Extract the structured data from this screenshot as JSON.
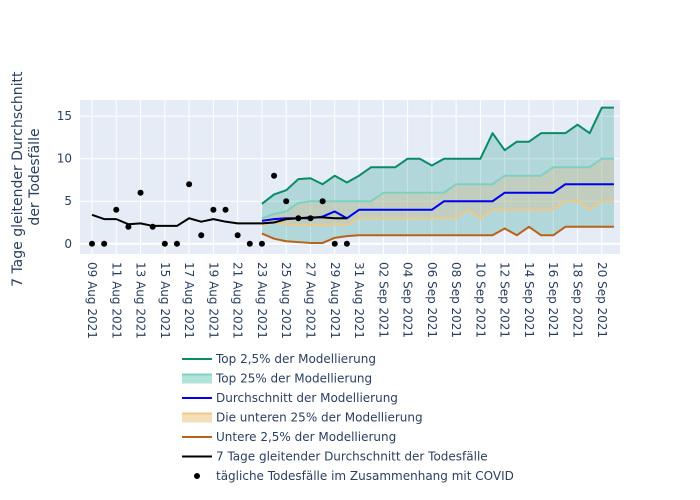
{
  "chart_data": {
    "type": "line",
    "ylabel_lines": [
      "7 Tage gleitender Durchschnitt",
      "der Todesfälle"
    ],
    "ylim": [
      -1.2,
      16.9
    ],
    "yticks": [
      0,
      5,
      10,
      15
    ],
    "x_start": "2021-08-09",
    "x_end": "2021-09-21",
    "x_ticks": [
      "09 Aug 2021",
      "11 Aug 2021",
      "13 Aug 2021",
      "15 Aug 2021",
      "17 Aug 2021",
      "19 Aug 2021",
      "21 Aug 2021",
      "23 Aug 2021",
      "25 Aug 2021",
      "27 Aug 2021",
      "29 Aug 2021",
      "31 Aug 2021",
      "02 Sep 2021",
      "04 Sep 2021",
      "06 Sep 2021",
      "08 Sep 2021",
      "10 Sep 2021",
      "12 Sep 2021",
      "14 Sep 2021",
      "16 Sep 2021",
      "18 Sep 2021",
      "20 Sep 2021"
    ],
    "model_dates": [
      "2021-08-23",
      "2021-08-24",
      "2021-08-25",
      "2021-08-26",
      "2021-08-27",
      "2021-08-28",
      "2021-08-29",
      "2021-08-30",
      "2021-08-31",
      "2021-09-01",
      "2021-09-02",
      "2021-09-03",
      "2021-09-04",
      "2021-09-05",
      "2021-09-06",
      "2021-09-07",
      "2021-09-08",
      "2021-09-09",
      "2021-09-10",
      "2021-09-11",
      "2021-09-12",
      "2021-09-13",
      "2021-09-14",
      "2021-09-15",
      "2021-09-16",
      "2021-09-17",
      "2021-09-18",
      "2021-09-19",
      "2021-09-20",
      "2021-09-21"
    ],
    "top_2_5": [
      4.7,
      5.8,
      6.3,
      7.6,
      7.7,
      7.0,
      8.0,
      7.2,
      8.0,
      9.0,
      9.0,
      9.0,
      10.0,
      10.0,
      9.2,
      10.0,
      10.0,
      10.0,
      10.0,
      13.0,
      11.0,
      12.0,
      12.0,
      13.0,
      13.0,
      13.0,
      14.0,
      13.0,
      16.0,
      16.0
    ],
    "top_25": [
      3.0,
      3.5,
      3.8,
      4.8,
      5.0,
      5.0,
      5.0,
      5.0,
      5.0,
      5.0,
      6.0,
      6.0,
      6.0,
      6.0,
      6.0,
      6.0,
      7.0,
      7.0,
      7.0,
      7.0,
      8.0,
      8.0,
      8.0,
      8.0,
      9.0,
      9.0,
      9.0,
      9.0,
      10.0,
      10.0
    ],
    "mean": [
      2.7,
      2.9,
      3.0,
      3.0,
      3.0,
      3.2,
      3.8,
      3.0,
      4.0,
      4.0,
      4.0,
      4.0,
      4.0,
      4.0,
      4.0,
      5.0,
      5.0,
      5.0,
      5.0,
      5.0,
      6.0,
      6.0,
      6.0,
      6.0,
      6.0,
      7.0,
      7.0,
      7.0,
      7.0,
      7.0
    ],
    "bottom_25": [
      2.2,
      2.5,
      2.3,
      2.2,
      2.2,
      2.2,
      2.3,
      2.2,
      3.0,
      3.0,
      3.0,
      3.0,
      3.0,
      3.0,
      3.0,
      3.0,
      3.0,
      4.0,
      3.0,
      4.0,
      4.0,
      4.0,
      4.0,
      4.0,
      4.0,
      5.0,
      5.0,
      4.0,
      5.0,
      5.0
    ],
    "bottom_2_5": [
      1.2,
      0.6,
      0.3,
      0.2,
      0.1,
      0.1,
      0.7,
      0.9,
      1.0,
      1.0,
      1.0,
      1.0,
      1.0,
      1.0,
      1.0,
      1.0,
      1.0,
      1.0,
      1.0,
      1.0,
      1.8,
      1.0,
      2.0,
      1.0,
      1.0,
      2.0,
      2.0,
      2.0,
      2.0,
      2.0
    ],
    "avg7_dates": [
      "2021-08-09",
      "2021-08-10",
      "2021-08-11",
      "2021-08-12",
      "2021-08-13",
      "2021-08-14",
      "2021-08-15",
      "2021-08-16",
      "2021-08-17",
      "2021-08-18",
      "2021-08-19",
      "2021-08-20",
      "2021-08-21",
      "2021-08-22",
      "2021-08-23",
      "2021-08-24",
      "2021-08-25",
      "2021-08-26",
      "2021-08-27",
      "2021-08-28",
      "2021-08-29",
      "2021-08-30"
    ],
    "avg7": [
      3.4,
      2.9,
      2.9,
      2.3,
      2.4,
      2.1,
      2.1,
      2.1,
      3.0,
      2.6,
      2.9,
      2.6,
      2.4,
      2.4,
      2.4,
      2.5,
      2.9,
      3.0,
      3.1,
      3.1,
      3.0,
      3.0
    ],
    "daily_dates": [
      "2021-08-09",
      "2021-08-10",
      "2021-08-11",
      "2021-08-12",
      "2021-08-13",
      "2021-08-14",
      "2021-08-15",
      "2021-08-16",
      "2021-08-17",
      "2021-08-18",
      "2021-08-19",
      "2021-08-20",
      "2021-08-21",
      "2021-08-22",
      "2021-08-23",
      "2021-08-24",
      "2021-08-25",
      "2021-08-26",
      "2021-08-27",
      "2021-08-28",
      "2021-08-29",
      "2021-08-30"
    ],
    "daily": [
      0,
      0,
      4,
      2,
      6,
      2,
      0,
      0,
      7,
      1,
      4,
      4,
      1,
      0,
      0,
      8,
      5,
      3,
      3,
      5,
      0,
      0
    ],
    "colors": {
      "top_2_5": "#0b8a6a",
      "top_25": "#7fd0bf",
      "mean": "#0000ee",
      "bottom_25": "#ecc98a",
      "bottom_2_5": "#b8621a",
      "avg7": "#000000",
      "daily": "#000000",
      "outer_fill": "rgba(0,140,120,0.22)",
      "inner_fill": "rgba(222,190,140,0.35)",
      "plot_bg": "#e5ecf6"
    },
    "legend": [
      {
        "label": "Top 2,5% der Modellierung",
        "style": "line",
        "color": "#0b8a6a"
      },
      {
        "label": "Top 25% der Modellierung",
        "style": "area",
        "color": "#7fd0bf"
      },
      {
        "label": "Durchschnitt der Modellierung",
        "style": "line",
        "color": "#0000ee"
      },
      {
        "label": "Die unteren 25% der Modellierung",
        "style": "area",
        "color": "#ecc98a"
      },
      {
        "label": "Untere 2,5% der Modellierung",
        "style": "line",
        "color": "#b8621a"
      },
      {
        "label": "7 Tage gleitender Durchschnitt der Todesfälle",
        "style": "line",
        "color": "#000000"
      },
      {
        "label": "tägliche Todesfälle im Zusammenhang mit COVID",
        "style": "marker",
        "color": "#000000"
      }
    ],
    "legend_position": "bottom",
    "grid": true
  }
}
